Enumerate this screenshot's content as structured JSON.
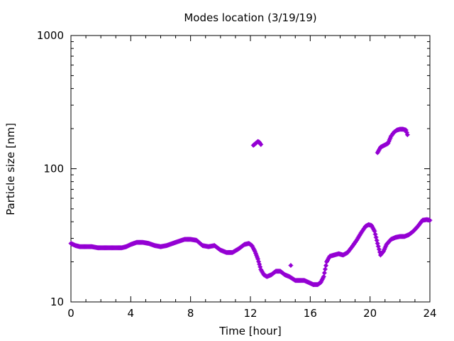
{
  "chart_data": {
    "type": "scatter",
    "title": "Modes location (3/19/19)",
    "xlabel": "Time [hour]",
    "ylabel": "Particle size [nm]",
    "xlim": [
      0,
      24
    ],
    "ylim": [
      10,
      1000
    ],
    "yscale": "log",
    "grid": false,
    "legend": "none",
    "color": "#9400d3",
    "xticks": [
      0,
      4,
      8,
      12,
      16,
      20,
      24
    ],
    "xtick_labels": [
      "0",
      "4",
      "8",
      "12",
      "16",
      "20",
      "24"
    ],
    "yticks": [
      10,
      100,
      1000
    ],
    "ytick_labels": [
      "10",
      "100",
      "1000"
    ],
    "series": [
      {
        "points": [
          [
            0.0,
            27.5
          ],
          [
            0.3,
            26.5
          ],
          [
            0.6,
            26.0
          ],
          [
            1.0,
            26.0
          ],
          [
            1.4,
            26.0
          ],
          [
            1.8,
            25.5
          ],
          [
            2.2,
            25.5
          ],
          [
            2.6,
            25.5
          ],
          [
            3.0,
            25.5
          ],
          [
            3.4,
            25.5
          ],
          [
            3.7,
            26.0
          ],
          [
            4.0,
            27.0
          ],
          [
            4.4,
            28.0
          ],
          [
            4.8,
            28.0
          ],
          [
            5.2,
            27.5
          ],
          [
            5.6,
            26.5
          ],
          [
            6.0,
            26.0
          ],
          [
            6.4,
            26.5
          ],
          [
            6.8,
            27.5
          ],
          [
            7.2,
            28.5
          ],
          [
            7.6,
            29.5
          ],
          [
            8.0,
            29.5
          ],
          [
            8.4,
            29.0
          ],
          [
            8.8,
            26.5
          ],
          [
            9.2,
            26.0
          ],
          [
            9.6,
            26.5
          ],
          [
            10.0,
            24.5
          ],
          [
            10.4,
            23.5
          ],
          [
            10.8,
            23.5
          ],
          [
            11.2,
            25.0
          ],
          [
            11.6,
            27.0
          ],
          [
            11.9,
            27.5
          ],
          [
            12.1,
            26.5
          ],
          [
            12.3,
            24.0
          ],
          [
            12.5,
            21.0
          ],
          [
            12.7,
            17.5
          ],
          [
            12.9,
            16.0
          ],
          [
            13.1,
            15.5
          ],
          [
            13.4,
            16.0
          ],
          [
            13.7,
            17.0
          ],
          [
            14.0,
            17.0
          ],
          [
            14.3,
            16.0
          ],
          [
            14.6,
            15.5
          ],
          [
            14.8,
            15.0
          ],
          [
            15.0,
            14.5
          ],
          [
            15.3,
            14.5
          ],
          [
            15.6,
            14.5
          ],
          [
            15.9,
            14.0
          ],
          [
            16.2,
            13.5
          ],
          [
            16.5,
            13.5
          ],
          [
            16.7,
            14.0
          ],
          [
            16.9,
            15.5
          ],
          [
            17.1,
            20.0
          ],
          [
            17.3,
            22.0
          ],
          [
            17.6,
            22.5
          ],
          [
            17.9,
            23.0
          ],
          [
            18.2,
            22.5
          ],
          [
            18.5,
            23.5
          ],
          [
            18.8,
            26.0
          ],
          [
            19.1,
            29.0
          ],
          [
            19.4,
            33.0
          ],
          [
            19.7,
            37.0
          ],
          [
            19.9,
            38.0
          ],
          [
            20.1,
            37.5
          ],
          [
            20.3,
            34.0
          ],
          [
            20.5,
            27.5
          ],
          [
            20.7,
            22.5
          ],
          [
            20.9,
            24.0
          ],
          [
            21.1,
            27.0
          ],
          [
            21.4,
            29.5
          ],
          [
            21.7,
            30.5
          ],
          [
            22.0,
            31.0
          ],
          [
            22.3,
            31.0
          ],
          [
            22.6,
            32.0
          ],
          [
            22.9,
            34.0
          ],
          [
            23.2,
            37.0
          ],
          [
            23.5,
            41.0
          ],
          [
            23.8,
            41.5
          ],
          [
            24.0,
            41.0
          ]
        ]
      },
      {
        "points": [
          [
            12.2,
            150
          ],
          [
            12.35,
            155
          ],
          [
            12.5,
            160
          ],
          [
            12.6,
            158
          ],
          [
            12.7,
            152
          ]
        ]
      },
      {
        "points": [
          [
            14.7,
            18.8
          ]
        ]
      },
      {
        "points": [
          [
            20.5,
            132
          ],
          [
            20.7,
            145
          ],
          [
            21.2,
            155
          ],
          [
            21.4,
            175
          ],
          [
            21.6,
            188
          ],
          [
            21.8,
            195
          ],
          [
            22.0,
            198
          ],
          [
            22.2,
            198
          ],
          [
            22.4,
            195
          ],
          [
            22.5,
            180
          ]
        ]
      }
    ]
  }
}
